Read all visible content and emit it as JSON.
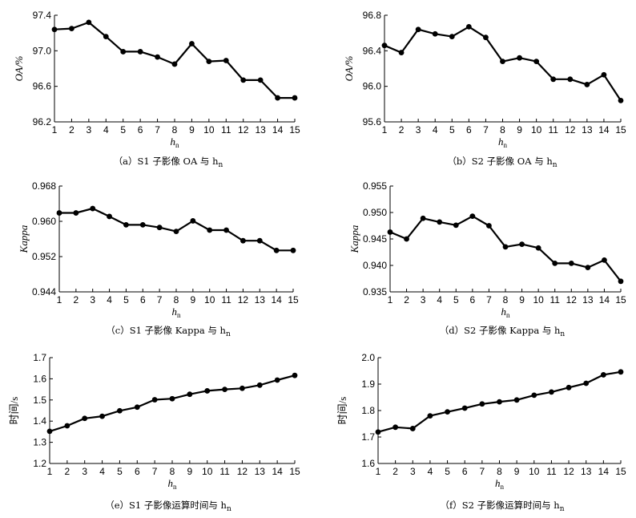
{
  "chart_data": [
    {
      "id": "a",
      "type": "line",
      "caption": "（a）S1 子影像 OA 与 h",
      "caption_sub": "n",
      "ylabel": "OA/%",
      "xlabel": "h",
      "xlabel_sub": "n",
      "x": [
        1,
        2,
        3,
        4,
        5,
        6,
        7,
        8,
        9,
        10,
        11,
        12,
        13,
        14,
        15
      ],
      "y": [
        97.24,
        97.25,
        97.32,
        97.16,
        96.99,
        96.99,
        96.93,
        96.85,
        97.08,
        96.88,
        96.89,
        96.67,
        96.67,
        96.47,
        96.47
      ],
      "ylim": [
        96.2,
        97.4
      ],
      "yticks": [
        "96.2",
        "96.6",
        "97.0",
        "97.4"
      ]
    },
    {
      "id": "b",
      "type": "line",
      "caption": "（b）S2 子影像 OA 与 h",
      "caption_sub": "n",
      "ylabel": "OA/%",
      "xlabel": "h",
      "xlabel_sub": "n",
      "x": [
        1,
        2,
        3,
        4,
        5,
        6,
        7,
        8,
        9,
        10,
        11,
        12,
        13,
        14,
        15
      ],
      "y": [
        96.46,
        96.38,
        96.64,
        96.59,
        96.56,
        96.67,
        96.55,
        96.28,
        96.32,
        96.28,
        96.08,
        96.08,
        96.02,
        96.13,
        95.84
      ],
      "ylim": [
        95.6,
        96.8
      ],
      "yticks": [
        "95.6",
        "96.0",
        "96.4",
        "96.8"
      ]
    },
    {
      "id": "c",
      "type": "line",
      "caption": "（c）S1 子影像 Kappa 与 h",
      "caption_sub": "n",
      "ylabel": "Kappa",
      "xlabel": "h",
      "xlabel_sub": "n",
      "x": [
        1,
        2,
        3,
        4,
        5,
        6,
        7,
        8,
        9,
        10,
        11,
        12,
        13,
        14,
        15
      ],
      "y": [
        0.9619,
        0.9619,
        0.9629,
        0.9611,
        0.9592,
        0.9592,
        0.9586,
        0.9577,
        0.9601,
        0.958,
        0.958,
        0.9556,
        0.9556,
        0.9534,
        0.9534
      ],
      "ylim": [
        0.944,
        0.968
      ],
      "yticks": [
        "0.944",
        "0.952",
        "0.960",
        "0.968"
      ]
    },
    {
      "id": "d",
      "type": "line",
      "caption": "（d）S2 子影像 Kappa 与 h",
      "caption_sub": "n",
      "ylabel": "Kappa",
      "xlabel": "h",
      "xlabel_sub": "n",
      "x": [
        1,
        2,
        3,
        4,
        5,
        6,
        7,
        8,
        9,
        10,
        11,
        12,
        13,
        14,
        15
      ],
      "y": [
        0.9463,
        0.945,
        0.9489,
        0.9482,
        0.9476,
        0.9493,
        0.9475,
        0.9435,
        0.944,
        0.9433,
        0.9404,
        0.9404,
        0.9396,
        0.941,
        0.937
      ],
      "ylim": [
        0.935,
        0.955
      ],
      "yticks": [
        "0.935",
        "0.940",
        "0.945",
        "0.950",
        "0.955"
      ]
    },
    {
      "id": "e",
      "type": "line",
      "caption": "（e）S1 子影像运算时间与 h",
      "caption_sub": "n",
      "ylabel": "时间/s",
      "xlabel": "h",
      "xlabel_sub": "n",
      "x": [
        1,
        2,
        3,
        4,
        5,
        6,
        7,
        8,
        9,
        10,
        11,
        12,
        13,
        14,
        15
      ],
      "y": [
        1.352,
        1.378,
        1.413,
        1.423,
        1.449,
        1.466,
        1.501,
        1.506,
        1.527,
        1.543,
        1.55,
        1.555,
        1.57,
        1.594,
        1.616
      ],
      "ylim": [
        1.2,
        1.7
      ],
      "yticks": [
        "1.2",
        "1.3",
        "1.4",
        "1.5",
        "1.6",
        "1.7"
      ]
    },
    {
      "id": "f",
      "type": "line",
      "caption": "（f）S2 子影像运算时间与 h",
      "caption_sub": "n",
      "ylabel": "时间/s",
      "xlabel": "h",
      "xlabel_sub": "n",
      "x": [
        1,
        2,
        3,
        4,
        5,
        6,
        7,
        8,
        9,
        10,
        11,
        12,
        13,
        14,
        15
      ],
      "y": [
        1.719,
        1.737,
        1.732,
        1.78,
        1.795,
        1.809,
        1.825,
        1.833,
        1.84,
        1.858,
        1.87,
        1.887,
        1.903,
        1.935,
        1.946
      ],
      "ylim": [
        1.6,
        2.0
      ],
      "yticks": [
        "1.6",
        "1.7",
        "1.8",
        "1.9",
        "2.0"
      ]
    }
  ]
}
